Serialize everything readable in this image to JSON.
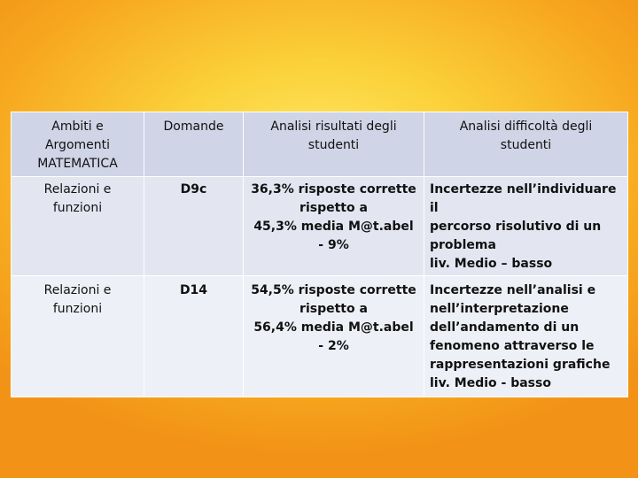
{
  "table": {
    "headers": [
      [
        "Ambiti e",
        "Argomenti",
        "MATEMATICA"
      ],
      [
        "Domande"
      ],
      [
        "Analisi risultati degli",
        "studenti"
      ],
      [
        "Analisi  difficoltà degli",
        "studenti"
      ]
    ],
    "rows": [
      {
        "ambito": [
          "Relazioni e",
          "funzioni"
        ],
        "domanda": "D9c",
        "risultati": [
          "36,3% risposte corrette",
          "rispetto a",
          "45,3% media M@t.abel",
          "- 9%"
        ],
        "difficolta": [
          "Incertezze nell’individuare il",
          "percorso risolutivo di un",
          "problema",
          "liv. Medio – basso"
        ]
      },
      {
        "ambito": [
          "Relazioni e",
          "funzioni"
        ],
        "domanda": "D14",
        "risultati": [
          "54,5% risposte corrette",
          "rispetto a",
          "56,4% media M@t.abel",
          "- 2%"
        ],
        "difficolta": [
          "Incertezze nell’analisi e",
          "nell’interpretazione",
          "dell’andamento di un",
          "fenomeno attraverso le",
          "rappresentazioni grafiche",
          "liv. Medio - basso"
        ]
      }
    ]
  }
}
